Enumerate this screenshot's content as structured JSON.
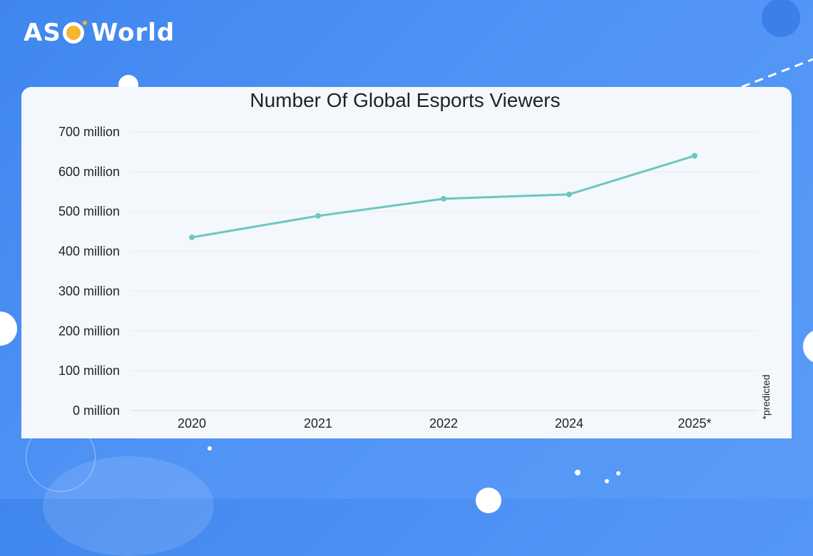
{
  "brand": {
    "name_left": "AS",
    "name_right": "World"
  },
  "colors": {
    "background": "#4a8ff2",
    "line": "#6cc7c0",
    "card": "#f4f8fc"
  },
  "chart_data": {
    "type": "line",
    "title": "Number Of Global Esports Viewers",
    "categories": [
      "2020",
      "2021",
      "2022",
      "2024",
      "2025*"
    ],
    "series": [
      {
        "values": [
          435,
          489,
          532,
          543,
          640
        ]
      }
    ],
    "unit": "million",
    "ylim": [
      0,
      700
    ],
    "yticks": [
      0,
      100,
      200,
      300,
      400,
      500,
      600,
      700
    ],
    "ytick_labels": [
      "0 million",
      "100 million",
      "200 million",
      "300 million",
      "400 million",
      "500 million",
      "600 million",
      "700 million"
    ],
    "grid": true,
    "note": "*predicted"
  }
}
